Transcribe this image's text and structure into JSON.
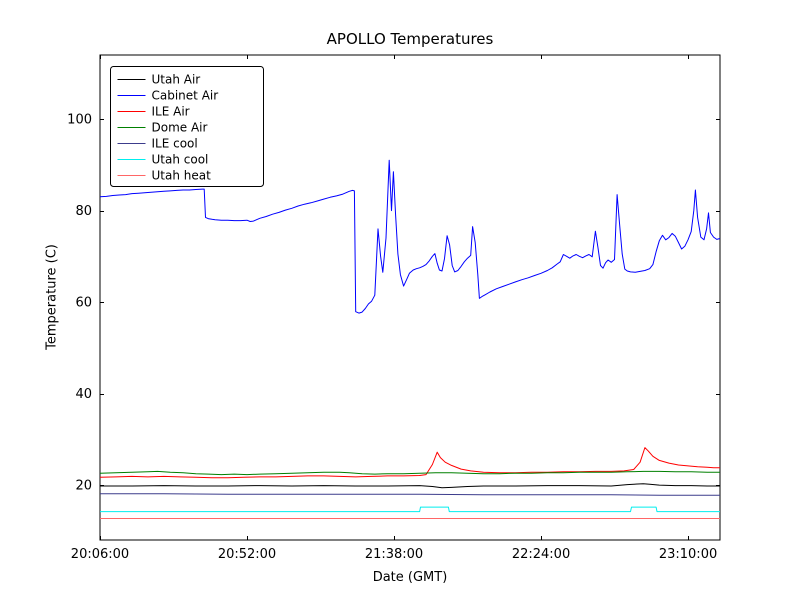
{
  "chart_data": {
    "type": "line",
    "title": "APOLLO Temperatures",
    "xlabel": "Date (GMT)",
    "ylabel": "Temperature (C)",
    "x_unit": "minutes after 20:06:00 GMT",
    "xlim": [
      0,
      194
    ],
    "ylim": [
      8,
      114
    ],
    "grid": false,
    "background": "#ffffff",
    "axis_color": "#000000",
    "xticks": {
      "positions": [
        0,
        46,
        92,
        138,
        184
      ],
      "labels": [
        "20:06:00",
        "20:52:00",
        "21:38:00",
        "22:24:00",
        "23:10:00"
      ]
    },
    "yticks": {
      "positions": [
        20,
        40,
        60,
        80,
        100
      ],
      "labels": [
        "20",
        "40",
        "60",
        "80",
        "100"
      ]
    },
    "legend": {
      "position": "upper-left",
      "border": true
    },
    "series": [
      {
        "name": "Utah Air",
        "color": "#000000",
        "points": [
          [
            0,
            19.8
          ],
          [
            10,
            19.8
          ],
          [
            20,
            19.9
          ],
          [
            30,
            19.8
          ],
          [
            40,
            19.8
          ],
          [
            50,
            19.9
          ],
          [
            60,
            19.8
          ],
          [
            70,
            19.9
          ],
          [
            80,
            19.8
          ],
          [
            90,
            19.8
          ],
          [
            100,
            19.9
          ],
          [
            104,
            19.7
          ],
          [
            107,
            19.4
          ],
          [
            110,
            19.5
          ],
          [
            115,
            19.7
          ],
          [
            120,
            19.8
          ],
          [
            130,
            19.8
          ],
          [
            140,
            19.9
          ],
          [
            150,
            19.9
          ],
          [
            160,
            19.8
          ],
          [
            165,
            20.1
          ],
          [
            170,
            20.3
          ],
          [
            172,
            20.2
          ],
          [
            175,
            20.0
          ],
          [
            180,
            19.9
          ],
          [
            185,
            19.9
          ],
          [
            190,
            19.8
          ],
          [
            194,
            19.8
          ]
        ]
      },
      {
        "name": "Cabinet Air",
        "color": "#0000ff",
        "points": [
          [
            0,
            83.0
          ],
          [
            2,
            83.1
          ],
          [
            4,
            83.3
          ],
          [
            6,
            83.4
          ],
          [
            8,
            83.5
          ],
          [
            10,
            83.7
          ],
          [
            12,
            83.8
          ],
          [
            14,
            83.9
          ],
          [
            16,
            84.0
          ],
          [
            18,
            84.1
          ],
          [
            20,
            84.2
          ],
          [
            22,
            84.3
          ],
          [
            24,
            84.4
          ],
          [
            26,
            84.5
          ],
          [
            28,
            84.5
          ],
          [
            30,
            84.6
          ],
          [
            32,
            84.7
          ],
          [
            32.6,
            84.7
          ],
          [
            33,
            78.5
          ],
          [
            34,
            78.2
          ],
          [
            35,
            78.1
          ],
          [
            36,
            78.0
          ],
          [
            38,
            77.9
          ],
          [
            40,
            77.9
          ],
          [
            42,
            77.8
          ],
          [
            44,
            77.8
          ],
          [
            46,
            77.9
          ],
          [
            47,
            77.6
          ],
          [
            48,
            77.7
          ],
          [
            49,
            78.0
          ],
          [
            50,
            78.3
          ],
          [
            52,
            78.7
          ],
          [
            54,
            79.2
          ],
          [
            56,
            79.6
          ],
          [
            58,
            80.1
          ],
          [
            60,
            80.5
          ],
          [
            62,
            81.0
          ],
          [
            64,
            81.4
          ],
          [
            66,
            81.7
          ],
          [
            68,
            82.1
          ],
          [
            70,
            82.5
          ],
          [
            72,
            82.9
          ],
          [
            74,
            83.2
          ],
          [
            75,
            83.4
          ],
          [
            76,
            83.6
          ],
          [
            77,
            83.9
          ],
          [
            78,
            84.2
          ],
          [
            79,
            84.4
          ],
          [
            79.6,
            84.3
          ],
          [
            80,
            57.9
          ],
          [
            81,
            57.6
          ],
          [
            82,
            57.8
          ],
          [
            83,
            58.6
          ],
          [
            84,
            59.6
          ],
          [
            85,
            60.2
          ],
          [
            86,
            61.5
          ],
          [
            87,
            76.0
          ],
          [
            87.8,
            70.0
          ],
          [
            88.5,
            66.5
          ],
          [
            89.5,
            74.0
          ],
          [
            90.5,
            91.0
          ],
          [
            91.2,
            80.0
          ],
          [
            91.8,
            88.5
          ],
          [
            92.5,
            79.0
          ],
          [
            93.2,
            70.5
          ],
          [
            94,
            66.0
          ],
          [
            95,
            63.5
          ],
          [
            96,
            65.0
          ],
          [
            96.8,
            66.3
          ],
          [
            98,
            67.0
          ],
          [
            99,
            67.3
          ],
          [
            100,
            67.5
          ],
          [
            101,
            67.8
          ],
          [
            102,
            68.2
          ],
          [
            103,
            69.0
          ],
          [
            104,
            70.0
          ],
          [
            104.8,
            70.6
          ],
          [
            105.5,
            68.5
          ],
          [
            106.2,
            67.0
          ],
          [
            107,
            66.8
          ],
          [
            107.8,
            69.5
          ],
          [
            108.6,
            74.5
          ],
          [
            109.4,
            72.5
          ],
          [
            110.2,
            68.0
          ],
          [
            111,
            66.6
          ],
          [
            112,
            66.9
          ],
          [
            113,
            67.8
          ],
          [
            114,
            68.8
          ],
          [
            115,
            69.6
          ],
          [
            116,
            70.2
          ],
          [
            116.6,
            76.5
          ],
          [
            117.4,
            73.0
          ],
          [
            118.2,
            66.0
          ],
          [
            118.7,
            60.8
          ],
          [
            119.5,
            61.2
          ],
          [
            120.5,
            61.6
          ],
          [
            122,
            62.2
          ],
          [
            124,
            62.9
          ],
          [
            126,
            63.4
          ],
          [
            128,
            63.9
          ],
          [
            130,
            64.4
          ],
          [
            132,
            64.9
          ],
          [
            134,
            65.3
          ],
          [
            136,
            65.8
          ],
          [
            138,
            66.3
          ],
          [
            140,
            66.9
          ],
          [
            141.5,
            67.5
          ],
          [
            143,
            68.3
          ],
          [
            144,
            68.8
          ],
          [
            145,
            70.4
          ],
          [
            146,
            70.0
          ],
          [
            147,
            69.6
          ],
          [
            148,
            70.1
          ],
          [
            149,
            70.4
          ],
          [
            150,
            70.0
          ],
          [
            151,
            69.7
          ],
          [
            152,
            70.1
          ],
          [
            153,
            70.4
          ],
          [
            154,
            69.9
          ],
          [
            155,
            75.5
          ],
          [
            155.8,
            72.0
          ],
          [
            156.6,
            68.0
          ],
          [
            157.4,
            67.4
          ],
          [
            158.2,
            68.6
          ],
          [
            159,
            69.2
          ],
          [
            160,
            68.7
          ],
          [
            161,
            69.3
          ],
          [
            161.8,
            83.5
          ],
          [
            162.6,
            77.0
          ],
          [
            163.4,
            70.5
          ],
          [
            164.2,
            67.2
          ],
          [
            165,
            66.8
          ],
          [
            166,
            66.6
          ],
          [
            167.5,
            66.5
          ],
          [
            169,
            66.7
          ],
          [
            170.5,
            66.9
          ],
          [
            172,
            67.3
          ],
          [
            173,
            68.2
          ],
          [
            174,
            71.0
          ],
          [
            175,
            73.4
          ],
          [
            176,
            74.6
          ],
          [
            177,
            73.6
          ],
          [
            178,
            74.1
          ],
          [
            179,
            75.0
          ],
          [
            180,
            74.4
          ],
          [
            181,
            73.0
          ],
          [
            182,
            71.6
          ],
          [
            183,
            72.2
          ],
          [
            184,
            73.6
          ],
          [
            185,
            75.4
          ],
          [
            185.8,
            80.0
          ],
          [
            186.3,
            84.5
          ],
          [
            187,
            78.5
          ],
          [
            188,
            74.2
          ],
          [
            189,
            73.6
          ],
          [
            189.8,
            76.0
          ],
          [
            190.4,
            79.5
          ],
          [
            191,
            75.2
          ],
          [
            192,
            74.2
          ],
          [
            193,
            73.7
          ],
          [
            194,
            73.9
          ]
        ]
      },
      {
        "name": "ILE Air",
        "color": "#ff0000",
        "points": [
          [
            0,
            21.7
          ],
          [
            5,
            21.8
          ],
          [
            10,
            21.9
          ],
          [
            15,
            21.8
          ],
          [
            20,
            21.9
          ],
          [
            25,
            21.8
          ],
          [
            30,
            21.7
          ],
          [
            35,
            21.6
          ],
          [
            40,
            21.6
          ],
          [
            45,
            21.7
          ],
          [
            50,
            21.8
          ],
          [
            55,
            21.8
          ],
          [
            60,
            21.9
          ],
          [
            65,
            22.0
          ],
          [
            70,
            22.0
          ],
          [
            75,
            21.9
          ],
          [
            80,
            21.8
          ],
          [
            85,
            21.9
          ],
          [
            90,
            22.0
          ],
          [
            95,
            22.0
          ],
          [
            100,
            22.1
          ],
          [
            102,
            22.3
          ],
          [
            104,
            24.5
          ],
          [
            105.5,
            27.2
          ],
          [
            106.5,
            26.0
          ],
          [
            108,
            25.0
          ],
          [
            110,
            24.3
          ],
          [
            113,
            23.5
          ],
          [
            116,
            23.1
          ],
          [
            120,
            22.8
          ],
          [
            125,
            22.7
          ],
          [
            130,
            22.7
          ],
          [
            135,
            22.8
          ],
          [
            140,
            22.8
          ],
          [
            145,
            22.9
          ],
          [
            150,
            22.9
          ],
          [
            155,
            23.0
          ],
          [
            160,
            23.0
          ],
          [
            164,
            23.1
          ],
          [
            167,
            23.4
          ],
          [
            169,
            25.0
          ],
          [
            170.5,
            28.2
          ],
          [
            171.5,
            27.5
          ],
          [
            173,
            26.3
          ],
          [
            175,
            25.4
          ],
          [
            178,
            24.8
          ],
          [
            181,
            24.4
          ],
          [
            184,
            24.2
          ],
          [
            187,
            24.0
          ],
          [
            190,
            23.9
          ],
          [
            192,
            23.8
          ],
          [
            194,
            23.8
          ]
        ]
      },
      {
        "name": "Dome Air",
        "color": "#008000",
        "points": [
          [
            0,
            22.6
          ],
          [
            5,
            22.7
          ],
          [
            10,
            22.8
          ],
          [
            15,
            22.9
          ],
          [
            18,
            23.0
          ],
          [
            22,
            22.8
          ],
          [
            26,
            22.7
          ],
          [
            30,
            22.5
          ],
          [
            34,
            22.4
          ],
          [
            38,
            22.3
          ],
          [
            42,
            22.4
          ],
          [
            46,
            22.3
          ],
          [
            50,
            22.4
          ],
          [
            55,
            22.5
          ],
          [
            60,
            22.6
          ],
          [
            65,
            22.7
          ],
          [
            70,
            22.8
          ],
          [
            75,
            22.8
          ],
          [
            78,
            22.7
          ],
          [
            82,
            22.5
          ],
          [
            86,
            22.4
          ],
          [
            90,
            22.5
          ],
          [
            95,
            22.5
          ],
          [
            100,
            22.6
          ],
          [
            105,
            22.7
          ],
          [
            110,
            22.7
          ],
          [
            115,
            22.6
          ],
          [
            120,
            22.5
          ],
          [
            125,
            22.5
          ],
          [
            130,
            22.6
          ],
          [
            135,
            22.6
          ],
          [
            140,
            22.7
          ],
          [
            145,
            22.7
          ],
          [
            150,
            22.8
          ],
          [
            155,
            22.8
          ],
          [
            160,
            22.8
          ],
          [
            165,
            22.9
          ],
          [
            170,
            23.0
          ],
          [
            175,
            23.0
          ],
          [
            180,
            22.9
          ],
          [
            185,
            22.9
          ],
          [
            190,
            22.8
          ],
          [
            194,
            22.8
          ]
        ]
      },
      {
        "name": "ILE cool",
        "color": "#3c3c8c",
        "points": [
          [
            0,
            18.1
          ],
          [
            20,
            18.1
          ],
          [
            40,
            18.0
          ],
          [
            60,
            18.0
          ],
          [
            80,
            18.0
          ],
          [
            100,
            18.0
          ],
          [
            120,
            17.9
          ],
          [
            140,
            17.9
          ],
          [
            160,
            17.9
          ],
          [
            175,
            17.8
          ],
          [
            185,
            17.8
          ],
          [
            194,
            17.8
          ]
        ]
      },
      {
        "name": "Utah cool",
        "color": "#00eeee",
        "points": [
          [
            0,
            14.2
          ],
          [
            100,
            14.2
          ],
          [
            100.3,
            15.2
          ],
          [
            109,
            15.2
          ],
          [
            109.3,
            14.2
          ],
          [
            166,
            14.2
          ],
          [
            166.3,
            15.2
          ],
          [
            174,
            15.2
          ],
          [
            174.3,
            14.2
          ],
          [
            194,
            14.2
          ]
        ]
      },
      {
        "name": "Utah heat",
        "color": "#ff6666",
        "points": [
          [
            0,
            12.7
          ],
          [
            194,
            12.7
          ]
        ]
      }
    ]
  }
}
